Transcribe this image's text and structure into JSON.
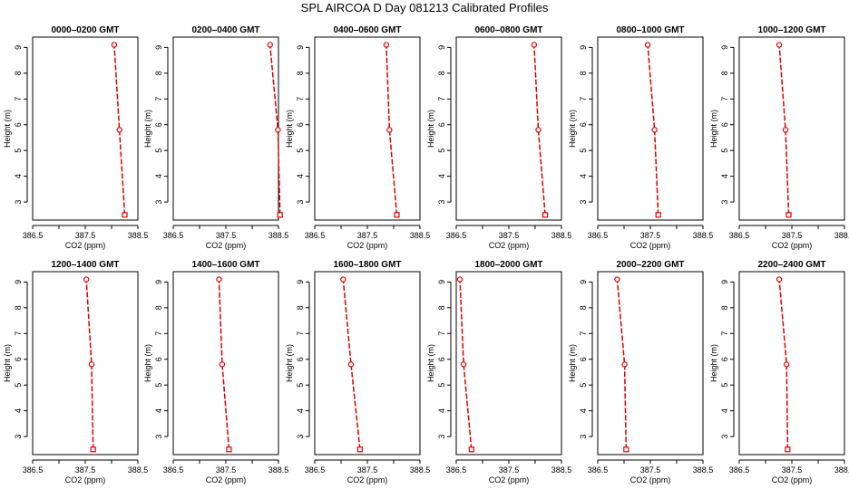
{
  "page_title": "SPL AIRCOA D  Day 081213  Calibrated Profiles",
  "colors": {
    "series": "#dd0000",
    "axis": "#000000"
  },
  "chart_data": [
    {
      "type": "line",
      "title": "0000–0200 GMT",
      "xlabel": "CO2 (ppm)",
      "ylabel": "Height (m)",
      "xlim": [
        386.5,
        388.5
      ],
      "ylim": [
        2.3,
        9.4
      ],
      "x_ticks": [
        "386.5",
        "387.5",
        "388.5"
      ],
      "y_ticks": [
        "3",
        "4",
        "5",
        "6",
        "7",
        "8",
        "9"
      ],
      "x": [
        388.25,
        388.15,
        388.05
      ],
      "y": [
        2.5,
        5.8,
        9.1
      ]
    },
    {
      "type": "line",
      "title": "0200–0400 GMT",
      "xlabel": "CO2 (ppm)",
      "ylabel": "Height (m)",
      "xlim": [
        386.5,
        388.5
      ],
      "ylim": [
        2.3,
        9.4
      ],
      "x_ticks": [
        "386.5",
        "387.5",
        "388.5"
      ],
      "y_ticks": [
        "3",
        "4",
        "5",
        "6",
        "7",
        "8",
        "9"
      ],
      "x": [
        388.53,
        388.49,
        388.34
      ],
      "y": [
        2.5,
        5.8,
        9.1
      ]
    },
    {
      "type": "line",
      "title": "0400–0600 GMT",
      "xlabel": "CO2 (ppm)",
      "ylabel": "Height (m)",
      "xlim": [
        386.5,
        388.5
      ],
      "ylim": [
        2.3,
        9.4
      ],
      "x_ticks": [
        "386.5",
        "387.5",
        "388.5"
      ],
      "y_ticks": [
        "3",
        "4",
        "5",
        "6",
        "7",
        "8",
        "9"
      ],
      "x": [
        388.06,
        387.92,
        387.86
      ],
      "y": [
        2.5,
        5.8,
        9.1
      ]
    },
    {
      "type": "line",
      "title": "0600–0800 GMT",
      "xlabel": "CO2 (ppm)",
      "ylabel": "Height (m)",
      "xlim": [
        386.5,
        388.5
      ],
      "ylim": [
        2.3,
        9.4
      ],
      "x_ticks": [
        "386.5",
        "387.5",
        "388.5"
      ],
      "y_ticks": [
        "3",
        "4",
        "5",
        "6",
        "7",
        "8",
        "9"
      ],
      "x": [
        388.19,
        388.06,
        387.98
      ],
      "y": [
        2.5,
        5.8,
        9.1
      ]
    },
    {
      "type": "line",
      "title": "0800–1000 GMT",
      "xlabel": "CO2 (ppm)",
      "ylabel": "Height (m)",
      "xlim": [
        386.5,
        388.5
      ],
      "ylim": [
        2.3,
        9.4
      ],
      "x_ticks": [
        "386.5",
        "387.5",
        "388.5"
      ],
      "y_ticks": [
        "3",
        "4",
        "5",
        "6",
        "7",
        "8",
        "9"
      ],
      "x": [
        387.65,
        387.58,
        387.45
      ],
      "y": [
        2.5,
        5.8,
        9.1
      ]
    },
    {
      "type": "line",
      "title": "1000–1200 GMT",
      "xlabel": "CO2 (ppm)",
      "ylabel": "Height (m)",
      "xlim": [
        386.5,
        388.5
      ],
      "ylim": [
        2.3,
        9.4
      ],
      "x_ticks": [
        "386.5",
        "387.5",
        "388.5"
      ],
      "y_ticks": [
        "3",
        "4",
        "5",
        "6",
        "7",
        "8",
        "9"
      ],
      "x": [
        387.44,
        387.38,
        387.26
      ],
      "y": [
        2.5,
        5.8,
        9.1
      ]
    },
    {
      "type": "line",
      "title": "1200–1400 GMT",
      "xlabel": "CO2 (ppm)",
      "ylabel": "Height (m)",
      "xlim": [
        386.5,
        388.5
      ],
      "ylim": [
        2.3,
        9.4
      ],
      "x_ticks": [
        "386.5",
        "387.5",
        "388.5"
      ],
      "y_ticks": [
        "3",
        "4",
        "5",
        "6",
        "7",
        "8",
        "9"
      ],
      "x": [
        387.65,
        387.62,
        387.52
      ],
      "y": [
        2.5,
        5.8,
        9.1
      ]
    },
    {
      "type": "line",
      "title": "1400–1600 GMT",
      "xlabel": "CO2 (ppm)",
      "ylabel": "Height (m)",
      "xlim": [
        386.5,
        388.5
      ],
      "ylim": [
        2.3,
        9.4
      ],
      "x_ticks": [
        "386.5",
        "387.5",
        "388.5"
      ],
      "y_ticks": [
        "3",
        "4",
        "5",
        "6",
        "7",
        "8",
        "9"
      ],
      "x": [
        387.56,
        387.43,
        387.37
      ],
      "y": [
        2.5,
        5.8,
        9.1
      ]
    },
    {
      "type": "line",
      "title": "1600–1800 GMT",
      "xlabel": "CO2 (ppm)",
      "ylabel": "Height (m)",
      "xlim": [
        386.5,
        388.5
      ],
      "ylim": [
        2.3,
        9.4
      ],
      "x_ticks": [
        "386.5",
        "387.5",
        "388.5"
      ],
      "y_ticks": [
        "3",
        "4",
        "5",
        "6",
        "7",
        "8",
        "9"
      ],
      "x": [
        387.36,
        387.19,
        387.04
      ],
      "y": [
        2.5,
        5.8,
        9.1
      ]
    },
    {
      "type": "line",
      "title": "1800–2000 GMT",
      "xlabel": "CO2 (ppm)",
      "ylabel": "Height (m)",
      "xlim": [
        386.5,
        388.5
      ],
      "ylim": [
        2.3,
        9.4
      ],
      "x_ticks": [
        "386.5",
        "387.5",
        "388.5"
      ],
      "y_ticks": [
        "3",
        "4",
        "5",
        "6",
        "7",
        "8",
        "9"
      ],
      "x": [
        386.79,
        386.64,
        386.57
      ],
      "y": [
        2.5,
        5.8,
        9.1
      ]
    },
    {
      "type": "line",
      "title": "2000–2200 GMT",
      "xlabel": "CO2 (ppm)",
      "ylabel": "Height (m)",
      "xlim": [
        386.5,
        388.5
      ],
      "ylim": [
        2.3,
        9.4
      ],
      "x_ticks": [
        "386.5",
        "387.5",
        "388.5"
      ],
      "y_ticks": [
        "3",
        "4",
        "5",
        "6",
        "7",
        "8",
        "9"
      ],
      "x": [
        387.04,
        387.01,
        386.87
      ],
      "y": [
        2.5,
        5.8,
        9.1
      ]
    },
    {
      "type": "line",
      "title": "2200–2400 GMT",
      "xlabel": "CO2 (ppm)",
      "ylabel": "Height (m)",
      "xlim": [
        386.5,
        388.5
      ],
      "ylim": [
        2.3,
        9.4
      ],
      "x_ticks": [
        "386.5",
        "387.5",
        "388.5"
      ],
      "y_ticks": [
        "3",
        "4",
        "5",
        "6",
        "7",
        "8",
        "9"
      ],
      "x": [
        387.42,
        387.4,
        387.26
      ],
      "y": [
        2.5,
        5.8,
        9.1
      ]
    }
  ]
}
